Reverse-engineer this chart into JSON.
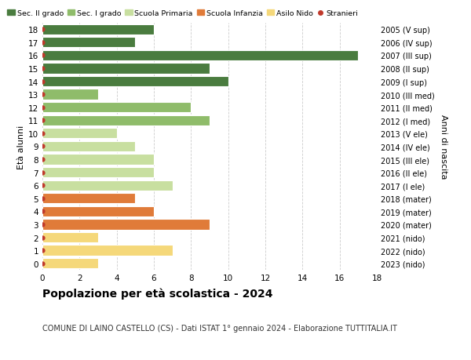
{
  "ages": [
    18,
    17,
    16,
    15,
    14,
    13,
    12,
    11,
    10,
    9,
    8,
    7,
    6,
    5,
    4,
    3,
    2,
    1,
    0
  ],
  "right_labels": [
    "2005 (V sup)",
    "2006 (IV sup)",
    "2007 (III sup)",
    "2008 (II sup)",
    "2009 (I sup)",
    "2010 (III med)",
    "2011 (II med)",
    "2012 (I med)",
    "2013 (V ele)",
    "2014 (IV ele)",
    "2015 (III ele)",
    "2016 (II ele)",
    "2017 (I ele)",
    "2018 (mater)",
    "2019 (mater)",
    "2020 (mater)",
    "2021 (nido)",
    "2022 (nido)",
    "2023 (nido)"
  ],
  "values": [
    6,
    5,
    17,
    9,
    10,
    3,
    8,
    9,
    4,
    5,
    6,
    6,
    7,
    5,
    6,
    9,
    3,
    7,
    3
  ],
  "colors": [
    "#4a7c3f",
    "#4a7c3f",
    "#4a7c3f",
    "#4a7c3f",
    "#4a7c3f",
    "#8fbc6a",
    "#8fbc6a",
    "#8fbc6a",
    "#c8dfa0",
    "#c8dfa0",
    "#c8dfa0",
    "#c8dfa0",
    "#c8dfa0",
    "#e07b39",
    "#e07b39",
    "#e07b39",
    "#f5d87a",
    "#f5d87a",
    "#f5d87a"
  ],
  "legend_labels": [
    "Sec. II grado",
    "Sec. I grado",
    "Scuola Primaria",
    "Scuola Infanzia",
    "Asilo Nido",
    "Stranieri"
  ],
  "legend_colors": [
    "#4a7c3f",
    "#8fbc6a",
    "#c8dfa0",
    "#e07b39",
    "#f5d87a",
    "#c0392b"
  ],
  "title": "Popolazione per età scolastica - 2024",
  "subtitle": "COMUNE DI LAINO CASTELLO (CS) - Dati ISTAT 1° gennaio 2024 - Elaborazione TUTTITALIA.IT",
  "ylabel_left": "Età alunni",
  "ylabel_right": "Anni di nascita",
  "bg_color": "#ffffff",
  "grid_color": "#cccccc",
  "bar_edge_color": "#ffffff",
  "stranieri_color": "#c0392b",
  "bar_height": 0.8
}
